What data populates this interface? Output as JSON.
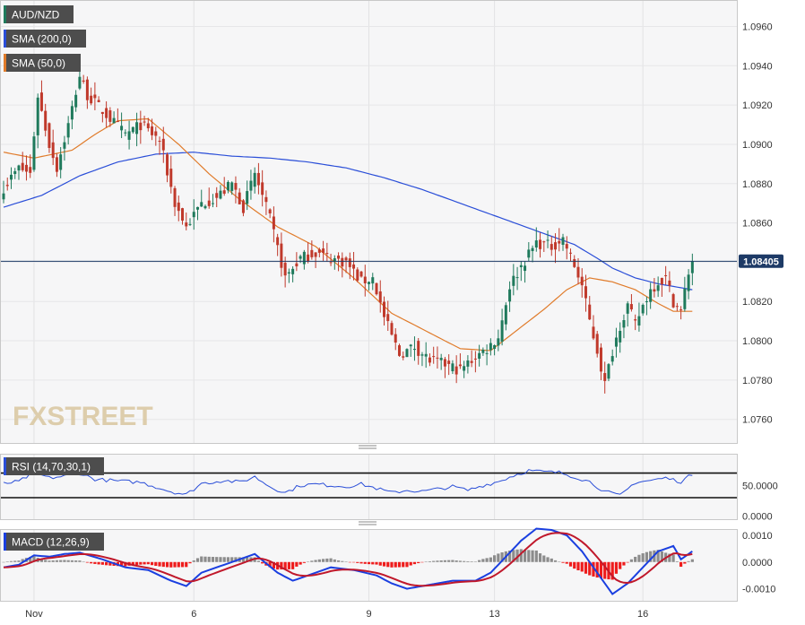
{
  "chart_data": {
    "type": "candlestick",
    "symbol": "AUD/NZD",
    "legend": {
      "symbol_label": "AUD/NZD",
      "sma200_label": "SMA (200,0)",
      "sma50_label": "SMA (50,0)"
    },
    "indicator_labels": {
      "rsi": "RSI (14,70,30,1)",
      "macd": "MACD (12,26,9)"
    },
    "watermark": "FXSTREET",
    "last_price_label": "1.08405",
    "last_price": 1.08405,
    "price_ylim": [
      1.0748,
      1.0973
    ],
    "price_ticks": [
      "1.0960",
      "1.0940",
      "1.0920",
      "1.0900",
      "1.0880",
      "1.0860",
      "1.0840",
      "1.0820",
      "1.0800",
      "1.0780",
      "1.0760"
    ],
    "rsi_ticks": [
      "50.0000",
      "0.0000"
    ],
    "rsi_levels": [
      70,
      30
    ],
    "rsi_ylim": [
      -5,
      100
    ],
    "macd_ticks": [
      "0.0010",
      "0.0000",
      "-0.0010"
    ],
    "macd_ylim": [
      -0.00145,
      0.0012
    ],
    "x_labels": [
      {
        "label": "Nov",
        "bar": 8
      },
      {
        "label": "6",
        "bar": 50
      },
      {
        "label": "9",
        "bar": 96
      },
      {
        "label": "13",
        "bar": 129
      },
      {
        "label": "16",
        "bar": 168
      }
    ],
    "close_anchors": [
      [
        0,
        1.0878
      ],
      [
        4,
        1.0888
      ],
      [
        7,
        1.0885
      ],
      [
        9,
        1.0925
      ],
      [
        12,
        1.09
      ],
      [
        14,
        1.0888
      ],
      [
        17,
        1.091
      ],
      [
        20,
        1.0935
      ],
      [
        22,
        1.0925
      ],
      [
        27,
        1.0915
      ],
      [
        32,
        1.0905
      ],
      [
        36,
        1.091
      ],
      [
        41,
        1.0902
      ],
      [
        45,
        1.087
      ],
      [
        48,
        1.0858
      ],
      [
        52,
        1.087
      ],
      [
        56,
        1.0873
      ],
      [
        60,
        1.088
      ],
      [
        63,
        1.0868
      ],
      [
        66,
        1.0885
      ],
      [
        70,
        1.0862
      ],
      [
        74,
        1.0832
      ],
      [
        78,
        1.0842
      ],
      [
        82,
        1.0845
      ],
      [
        86,
        1.0842
      ],
      [
        90,
        1.084
      ],
      [
        94,
        1.083
      ],
      [
        97,
        1.0832
      ],
      [
        100,
        1.0812
      ],
      [
        104,
        1.0793
      ],
      [
        108,
        1.0797
      ],
      [
        112,
        1.079
      ],
      [
        116,
        1.0788
      ],
      [
        120,
        1.0785
      ],
      [
        124,
        1.0792
      ],
      [
        127,
        1.0796
      ],
      [
        130,
        1.0802
      ],
      [
        133,
        1.0828
      ],
      [
        136,
        1.0838
      ],
      [
        140,
        1.085
      ],
      [
        144,
        1.0848
      ],
      [
        147,
        1.0852
      ],
      [
        150,
        1.0838
      ],
      [
        152,
        1.0828
      ],
      [
        154,
        1.081
      ],
      [
        156,
        1.0795
      ],
      [
        158,
        1.0778
      ],
      [
        160,
        1.0795
      ],
      [
        162,
        1.0808
      ],
      [
        164,
        1.0818
      ],
      [
        166,
        1.0808
      ],
      [
        168,
        1.0818
      ],
      [
        170,
        1.0826
      ],
      [
        172,
        1.083
      ],
      [
        174,
        1.0832
      ],
      [
        176,
        1.082
      ],
      [
        178,
        1.0815
      ],
      [
        180,
        1.0835
      ],
      [
        181,
        1.08405
      ]
    ],
    "sma50_anchors": [
      [
        0,
        1.0896
      ],
      [
        8,
        1.0893
      ],
      [
        18,
        1.0897
      ],
      [
        24,
        1.0905
      ],
      [
        30,
        1.0912
      ],
      [
        38,
        1.0913
      ],
      [
        46,
        1.09
      ],
      [
        54,
        1.0885
      ],
      [
        62,
        1.0872
      ],
      [
        72,
        1.0858
      ],
      [
        82,
        1.0848
      ],
      [
        92,
        1.0832
      ],
      [
        102,
        1.0814
      ],
      [
        112,
        1.0804
      ],
      [
        120,
        1.0796
      ],
      [
        128,
        1.0795
      ],
      [
        134,
        1.0804
      ],
      [
        142,
        1.0816
      ],
      [
        148,
        1.0826
      ],
      [
        154,
        1.0832
      ],
      [
        160,
        1.083
      ],
      [
        166,
        1.0826
      ],
      [
        172,
        1.0819
      ],
      [
        176,
        1.0815
      ],
      [
        181,
        1.0815
      ]
    ],
    "sma200_anchors": [
      [
        0,
        1.0868
      ],
      [
        10,
        1.0874
      ],
      [
        20,
        1.0884
      ],
      [
        30,
        1.0891
      ],
      [
        40,
        1.0895
      ],
      [
        50,
        1.0896
      ],
      [
        60,
        1.0894
      ],
      [
        70,
        1.0893
      ],
      [
        80,
        1.0891
      ],
      [
        90,
        1.0888
      ],
      [
        100,
        1.0883
      ],
      [
        110,
        1.0877
      ],
      [
        120,
        1.087
      ],
      [
        130,
        1.0863
      ],
      [
        140,
        1.0856
      ],
      [
        150,
        1.0849
      ],
      [
        156,
        1.0842
      ],
      [
        160,
        1.0837
      ],
      [
        166,
        1.0832
      ],
      [
        172,
        1.0829
      ],
      [
        178,
        1.0827
      ],
      [
        181,
        1.0826
      ]
    ],
    "rsi_anchors": [
      [
        0,
        53
      ],
      [
        4,
        56
      ],
      [
        8,
        71
      ],
      [
        12,
        62
      ],
      [
        16,
        65
      ],
      [
        20,
        70
      ],
      [
        24,
        60
      ],
      [
        30,
        57
      ],
      [
        36,
        55
      ],
      [
        44,
        40
      ],
      [
        48,
        35
      ],
      [
        52,
        53
      ],
      [
        58,
        58
      ],
      [
        62,
        55
      ],
      [
        66,
        64
      ],
      [
        70,
        48
      ],
      [
        74,
        38
      ],
      [
        78,
        50
      ],
      [
        82,
        52
      ],
      [
        86,
        50
      ],
      [
        90,
        48
      ],
      [
        94,
        52
      ],
      [
        98,
        45
      ],
      [
        102,
        38
      ],
      [
        106,
        42
      ],
      [
        110,
        40
      ],
      [
        114,
        44
      ],
      [
        118,
        48
      ],
      [
        122,
        42
      ],
      [
        126,
        50
      ],
      [
        130,
        56
      ],
      [
        134,
        66
      ],
      [
        138,
        74
      ],
      [
        142,
        72
      ],
      [
        146,
        71
      ],
      [
        150,
        64
      ],
      [
        154,
        56
      ],
      [
        158,
        40
      ],
      [
        162,
        33
      ],
      [
        166,
        55
      ],
      [
        170,
        58
      ],
      [
        174,
        62
      ],
      [
        178,
        56
      ],
      [
        181,
        68
      ]
    ],
    "macd_anchors": [
      [
        0,
        -0.0002
      ],
      [
        4,
        -0.0001
      ],
      [
        8,
        0.00025
      ],
      [
        12,
        0.0002
      ],
      [
        16,
        0.0003
      ],
      [
        20,
        0.00035
      ],
      [
        26,
        0.0001
      ],
      [
        32,
        -0.0002
      ],
      [
        38,
        -0.0003
      ],
      [
        44,
        -0.0007
      ],
      [
        48,
        -0.0009
      ],
      [
        52,
        -0.0004
      ],
      [
        58,
        -0.0001
      ],
      [
        62,
        0.0001
      ],
      [
        66,
        0.0003
      ],
      [
        72,
        -0.0004
      ],
      [
        76,
        -0.0007
      ],
      [
        80,
        -0.0005
      ],
      [
        86,
        -0.0002
      ],
      [
        92,
        -0.0003
      ],
      [
        98,
        -0.0005
      ],
      [
        102,
        -0.0008
      ],
      [
        106,
        -0.001
      ],
      [
        110,
        -0.0009
      ],
      [
        114,
        -0.0008
      ],
      [
        118,
        -0.0007
      ],
      [
        124,
        -0.0007
      ],
      [
        128,
        -0.0004
      ],
      [
        132,
        0.0002
      ],
      [
        136,
        0.0008
      ],
      [
        140,
        0.00125
      ],
      [
        144,
        0.0012
      ],
      [
        148,
        0.001
      ],
      [
        152,
        0.0004
      ],
      [
        156,
        -0.0004
      ],
      [
        160,
        -0.0012
      ],
      [
        164,
        -0.0008
      ],
      [
        168,
        -0.0002
      ],
      [
        172,
        0.0004
      ],
      [
        176,
        0.0006
      ],
      [
        178,
        0.0001
      ],
      [
        181,
        0.0004
      ]
    ],
    "colors": {
      "up": "#1f7a5c",
      "down": "#c0392b",
      "sma50": "#e07b2a",
      "sma200": "#2a4ed8",
      "macd": "#1a3fe0",
      "signal": "#c0182b",
      "hist_pos": "#8c8c8c",
      "hist_neg": "#ee1c1c",
      "rsi": "#2a4ed8",
      "label_bg": "#4d4d4d",
      "price_tag": "#1d3a66"
    }
  }
}
